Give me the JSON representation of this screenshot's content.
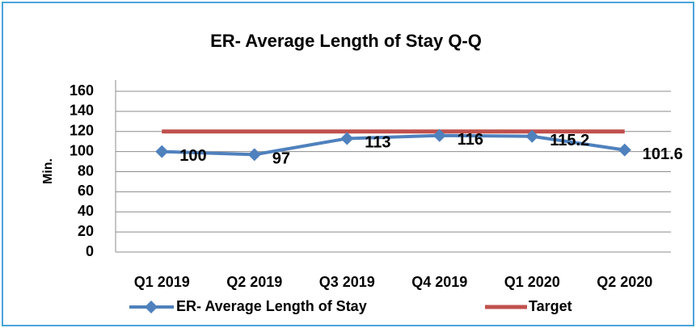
{
  "chart_data": {
    "type": "line",
    "title": "ER- Average Length of Stay Q-Q",
    "y_label": "Min.",
    "categories": [
      "Q1 2019",
      "Q2 2019",
      "Q3 2019",
      "Q4 2019",
      "Q1 2020",
      "Q2 2020"
    ],
    "series": [
      {
        "name": "ER- Average Length of Stay",
        "color": "#4f81bd",
        "values": [
          100,
          97,
          113,
          116,
          115.2,
          101.6
        ]
      },
      {
        "name": "Target",
        "color": "#c0504d",
        "values": [
          120,
          120,
          120,
          120,
          120,
          120
        ]
      }
    ],
    "ylim": [
      0,
      160
    ],
    "yticks": [
      0,
      20,
      40,
      60,
      80,
      100,
      120,
      140,
      160
    ],
    "grid": true,
    "legend": "bottom",
    "y_label_color": "#00b050"
  }
}
